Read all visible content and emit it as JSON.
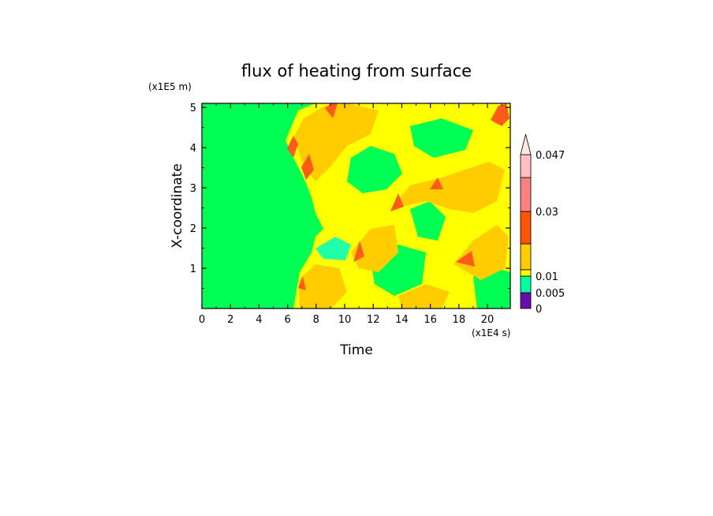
{
  "chart_data": {
    "type": "heatmap",
    "title": "flux of heating from surface",
    "xlabel": "Time",
    "ylabel": "X-coordinate",
    "x_unit": "(x1E4 s)",
    "y_unit": "(x1E5 m)",
    "xlim": [
      0,
      21.6
    ],
    "ylim": [
      0,
      5.1
    ],
    "x_ticks": [
      "0",
      "2",
      "4",
      "6",
      "8",
      "10",
      "12",
      "14",
      "16",
      "18",
      "20"
    ],
    "y_ticks": [
      "1",
      "2",
      "3",
      "4",
      "5"
    ],
    "colorbar": {
      "levels": [
        0,
        0.005,
        0.01,
        0.02,
        0.03,
        0.04,
        0.047
      ],
      "tick_labels": [
        "0",
        "0.005",
        "0.01",
        "0.03",
        "0.047"
      ],
      "tick_values": [
        0,
        0.005,
        0.01,
        0.03,
        0.047
      ],
      "colors": [
        "#6a0dad",
        "#00ffa0",
        "#ffff00",
        "#ffcc00",
        "#ff5500",
        "#ff8080",
        "#ffc0c0"
      ],
      "extend": "max"
    },
    "grid": false
  }
}
